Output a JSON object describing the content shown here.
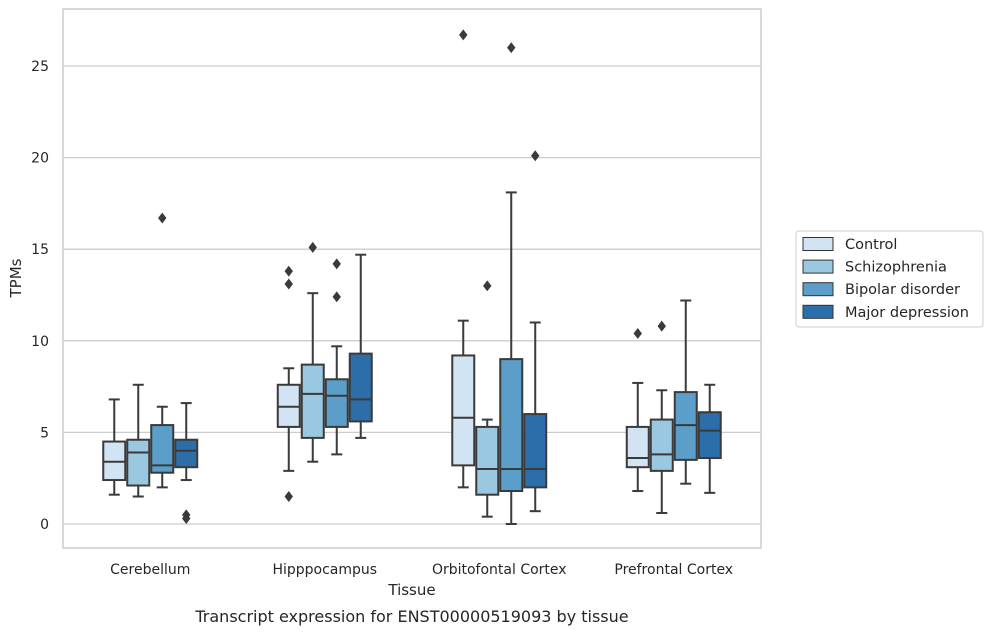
{
  "caption": "Transcript expression for ENST00000519093 by tissue",
  "chart_data": {
    "type": "box",
    "xlabel": "Tissue",
    "ylabel": "TPMs",
    "ylim": [
      -1.2,
      27.8
    ],
    "yticks": [
      0,
      5,
      10,
      15,
      20,
      25
    ],
    "grid": "horizontal",
    "legend_position": "right",
    "categories": [
      "Cerebellum",
      "Hipppocampus",
      "Orbitofontal Cortex",
      "Prefrontal Cortex"
    ],
    "series": [
      {
        "name": "Control",
        "color": "#d2e3f3",
        "boxes": [
          {
            "whisker_low": 1.6,
            "q1": 2.4,
            "median": 3.4,
            "q3": 4.5,
            "whisker_high": 6.8,
            "outliers": []
          },
          {
            "whisker_low": 2.9,
            "q1": 5.3,
            "median": 6.4,
            "q3": 7.6,
            "whisker_high": 8.5,
            "outliers": [
              1.5,
              13.1,
              13.8
            ]
          },
          {
            "whisker_low": 2.0,
            "q1": 3.2,
            "median": 5.8,
            "q3": 9.2,
            "whisker_high": 11.1,
            "outliers": [
              26.7
            ]
          },
          {
            "whisker_low": 1.8,
            "q1": 3.1,
            "median": 3.6,
            "q3": 5.3,
            "whisker_high": 7.7,
            "outliers": [
              10.4
            ]
          }
        ]
      },
      {
        "name": "Schizophrenia",
        "color": "#9ac8e0",
        "boxes": [
          {
            "whisker_low": 1.5,
            "q1": 2.1,
            "median": 3.9,
            "q3": 4.6,
            "whisker_high": 7.6,
            "outliers": []
          },
          {
            "whisker_low": 3.4,
            "q1": 4.7,
            "median": 7.1,
            "q3": 8.7,
            "whisker_high": 12.6,
            "outliers": [
              15.1
            ]
          },
          {
            "whisker_low": 0.4,
            "q1": 1.6,
            "median": 3.0,
            "q3": 5.3,
            "whisker_high": 5.7,
            "outliers": [
              13.0
            ]
          },
          {
            "whisker_low": 0.6,
            "q1": 2.9,
            "median": 3.8,
            "q3": 5.7,
            "whisker_high": 7.3,
            "outliers": [
              10.8
            ]
          }
        ]
      },
      {
        "name": "Bipolar disorder",
        "color": "#5a9ec9",
        "boxes": [
          {
            "whisker_low": 2.0,
            "q1": 2.8,
            "median": 3.2,
            "q3": 5.4,
            "whisker_high": 6.4,
            "outliers": [
              16.7
            ]
          },
          {
            "whisker_low": 3.8,
            "q1": 5.3,
            "median": 7.0,
            "q3": 7.9,
            "whisker_high": 9.7,
            "outliers": [
              12.4,
              14.2
            ]
          },
          {
            "whisker_low": 0.0,
            "q1": 1.8,
            "median": 3.0,
            "q3": 9.0,
            "whisker_high": 18.1,
            "outliers": [
              26.0
            ]
          },
          {
            "whisker_low": 2.2,
            "q1": 3.5,
            "median": 5.4,
            "q3": 7.2,
            "whisker_high": 12.2,
            "outliers": []
          }
        ]
      },
      {
        "name": "Major depression",
        "color": "#2c6ea9",
        "boxes": [
          {
            "whisker_low": 2.4,
            "q1": 3.1,
            "median": 4.0,
            "q3": 4.6,
            "whisker_high": 6.6,
            "outliers": [
              0.3,
              0.5
            ]
          },
          {
            "whisker_low": 4.7,
            "q1": 5.6,
            "median": 6.8,
            "q3": 9.3,
            "whisker_high": 14.7,
            "outliers": []
          },
          {
            "whisker_low": 0.7,
            "q1": 2.0,
            "median": 3.0,
            "q3": 6.0,
            "whisker_high": 11.0,
            "outliers": [
              20.1
            ]
          },
          {
            "whisker_low": 1.7,
            "q1": 3.6,
            "median": 5.1,
            "q3": 6.1,
            "whisker_high": 7.6,
            "outliers": []
          }
        ]
      }
    ]
  }
}
